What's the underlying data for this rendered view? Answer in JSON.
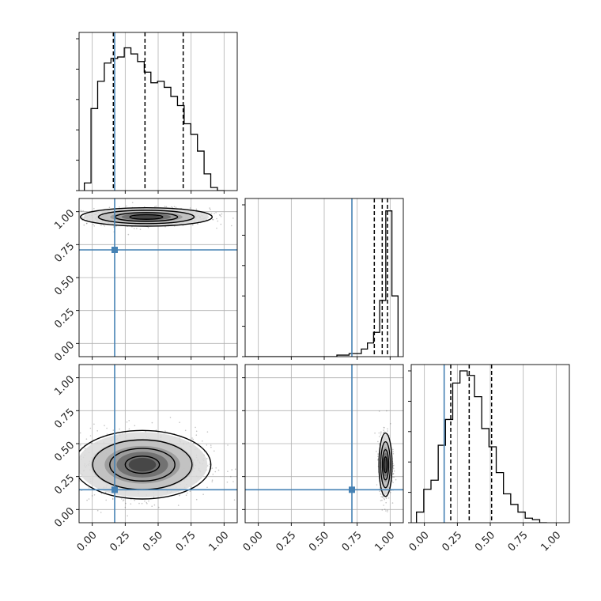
{
  "chart_data": {
    "type": "corner",
    "parameters": 3,
    "axis_range": [
      -0.1,
      1.1
    ],
    "tick_values": [
      0.0,
      0.25,
      0.5,
      0.75,
      1.0
    ],
    "tick_labels": [
      "0.00",
      "0.25",
      "0.50",
      "0.75",
      "1.00"
    ],
    "grid": true,
    "colors": {
      "truth": "#4682b4",
      "line": "#000000",
      "grid": "#b0b0b0",
      "points": "#555555"
    },
    "truths": [
      0.17,
      0.71,
      0.15
    ],
    "histograms": [
      {
        "param": 0,
        "bin_edges": [
          -0.06,
          1.0
        ],
        "counts": [
          0.05,
          0.54,
          0.72,
          0.84,
          0.87,
          0.88,
          0.94,
          0.9,
          0.85,
          0.78,
          0.71,
          0.72,
          0.68,
          0.62,
          0.56,
          0.44,
          0.37,
          0.26,
          0.11,
          0.02,
          0.0
        ],
        "quantiles": [
          0.16,
          0.4,
          0.69
        ]
      },
      {
        "param": 1,
        "bin_edges": [
          -0.1,
          1.06
        ],
        "counts": [
          0,
          0,
          0,
          0,
          0,
          0,
          0,
          0,
          0,
          0,
          0,
          0,
          0,
          0,
          0,
          0.01,
          0.01,
          0.02,
          0.02,
          0.05,
          0.09,
          0.16,
          0.37,
          0.96,
          0.4
        ],
        "quantiles": [
          0.88,
          0.94,
          0.98
        ]
      },
      {
        "param": 2,
        "bin_edges": [
          -0.06,
          0.93
        ],
        "counts": [
          0.07,
          0.22,
          0.28,
          0.51,
          0.68,
          0.92,
          1.0,
          0.97,
          0.83,
          0.62,
          0.5,
          0.33,
          0.19,
          0.12,
          0.07,
          0.03,
          0.02,
          0.0
        ],
        "quantiles": [
          0.2,
          0.34,
          0.51
        ]
      }
    ],
    "contour_panels": [
      {
        "x_param": 0,
        "y_param": 1,
        "center": [
          0.41,
          0.96
        ],
        "spread": [
          0.25,
          0.035
        ]
      },
      {
        "x_param": 0,
        "y_param": 2,
        "center": [
          0.38,
          0.34
        ],
        "spread": [
          0.26,
          0.13
        ]
      },
      {
        "x_param": 1,
        "y_param": 2,
        "center": [
          0.965,
          0.34
        ],
        "spread": [
          0.025,
          0.12
        ]
      }
    ]
  }
}
